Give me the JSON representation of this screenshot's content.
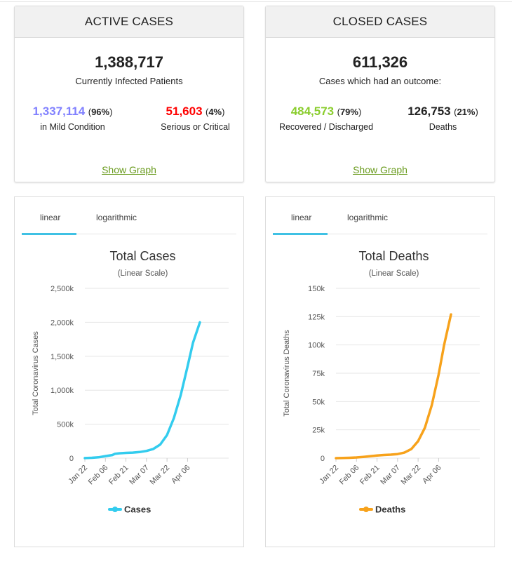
{
  "active": {
    "title": "ACTIVE CASES",
    "total": "1,388,717",
    "total_label": "Currently Infected Patients",
    "mild_value": "1,337,114",
    "mild_pct": "96%",
    "mild_label": "in Mild Condition",
    "serious_value": "51,603",
    "serious_pct": "4%",
    "serious_label": "Serious or Critical",
    "link": "Show Graph"
  },
  "closed": {
    "title": "CLOSED CASES",
    "total": "611,326",
    "total_label": "Cases which had an outcome:",
    "recovered_value": "484,573",
    "recovered_pct": "79%",
    "recovered_label": "Recovered / Discharged",
    "deaths_value": "126,753",
    "deaths_pct": "21%",
    "deaths_label": "Deaths",
    "link": "Show Graph"
  },
  "colors": {
    "mild": "#8080ff",
    "serious": "#ff0000",
    "recovered": "#8acd2d",
    "link": "#6a9b1e",
    "cases_line": "#33ccee",
    "deaths_line": "#f7a21b",
    "tab_underline": "#3fc1e4"
  },
  "tabs": {
    "linear": "linear",
    "log": "logarithmic"
  },
  "chart_data": [
    {
      "type": "line",
      "title": "Total Cases",
      "subtitle": "(Linear Scale)",
      "ylabel": "Total Coronavirus Cases",
      "xlabel": "",
      "x_ticks": [
        "Jan 22",
        "Feb 06",
        "Feb 21",
        "Mar 07",
        "Mar 22",
        "Apr 06"
      ],
      "y_ticks": [
        "0",
        "500k",
        "1,000k",
        "1,500k",
        "2,000k",
        "2,500k"
      ],
      "ylim": [
        0,
        2500000
      ],
      "grid": true,
      "legend_position": "bottom",
      "series": [
        {
          "name": "Cases",
          "color": "#33ccee",
          "x": [
            "Jan 22",
            "Jan 27",
            "Feb 01",
            "Feb 06",
            "Feb 11",
            "Feb 13",
            "Feb 16",
            "Feb 21",
            "Feb 26",
            "Mar 02",
            "Mar 07",
            "Mar 12",
            "Mar 17",
            "Mar 22",
            "Mar 27",
            "Apr 01",
            "Apr 06",
            "Apr 10",
            "Apr 15"
          ],
          "values": [
            600,
            5000,
            12000,
            30000,
            45000,
            64000,
            71000,
            77000,
            82000,
            90000,
            106000,
            135000,
            200000,
            340000,
            590000,
            930000,
            1350000,
            1700000,
            2000000
          ]
        }
      ]
    },
    {
      "type": "line",
      "title": "Total Deaths",
      "subtitle": "(Linear Scale)",
      "ylabel": "Total Coronavirus Deaths",
      "xlabel": "",
      "x_ticks": [
        "Jan 22",
        "Feb 06",
        "Feb 21",
        "Mar 07",
        "Mar 22",
        "Apr 06"
      ],
      "y_ticks": [
        "0",
        "25k",
        "50k",
        "75k",
        "100k",
        "125k",
        "150k"
      ],
      "ylim": [
        0,
        150000
      ],
      "grid": true,
      "legend_position": "bottom",
      "series": [
        {
          "name": "Deaths",
          "color": "#f7a21b",
          "x": [
            "Jan 22",
            "Jan 27",
            "Feb 01",
            "Feb 06",
            "Feb 11",
            "Feb 16",
            "Feb 21",
            "Feb 26",
            "Mar 02",
            "Mar 07",
            "Mar 12",
            "Mar 17",
            "Mar 22",
            "Mar 27",
            "Apr 01",
            "Apr 06",
            "Apr 10",
            "Apr 15"
          ],
          "values": [
            17,
            100,
            300,
            600,
            1100,
            1700,
            2300,
            2800,
            3100,
            3600,
            4900,
            8000,
            15000,
            27000,
            47000,
            74000,
            100000,
            127000
          ]
        }
      ]
    }
  ]
}
